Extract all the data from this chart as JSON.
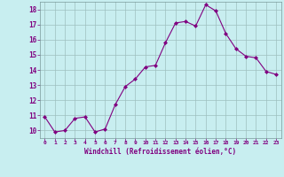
{
  "x": [
    0,
    1,
    2,
    3,
    4,
    5,
    6,
    7,
    8,
    9,
    10,
    11,
    12,
    13,
    14,
    15,
    16,
    17,
    18,
    19,
    20,
    21,
    22,
    23
  ],
  "y": [
    10.9,
    9.9,
    10.0,
    10.8,
    10.9,
    9.9,
    10.1,
    11.7,
    12.9,
    13.4,
    14.2,
    14.3,
    15.8,
    17.1,
    17.2,
    16.9,
    18.3,
    17.9,
    16.4,
    15.4,
    14.9,
    14.8,
    13.9,
    13.7
  ],
  "line_color": "#800080",
  "marker": "D",
  "marker_size": 2,
  "bg_color": "#c8eef0",
  "grid_color": "#9dbfbf",
  "xlabel": "Windchill (Refroidissement éolien,°C)",
  "xlabel_color": "#800080",
  "tick_color": "#800080",
  "ylim": [
    9.5,
    18.5
  ],
  "yticks": [
    10,
    11,
    12,
    13,
    14,
    15,
    16,
    17,
    18
  ],
  "xticks": [
    0,
    1,
    2,
    3,
    4,
    5,
    6,
    7,
    8,
    9,
    10,
    11,
    12,
    13,
    14,
    15,
    16,
    17,
    18,
    19,
    20,
    21,
    22,
    23
  ],
  "xlim": [
    -0.5,
    23.5
  ]
}
